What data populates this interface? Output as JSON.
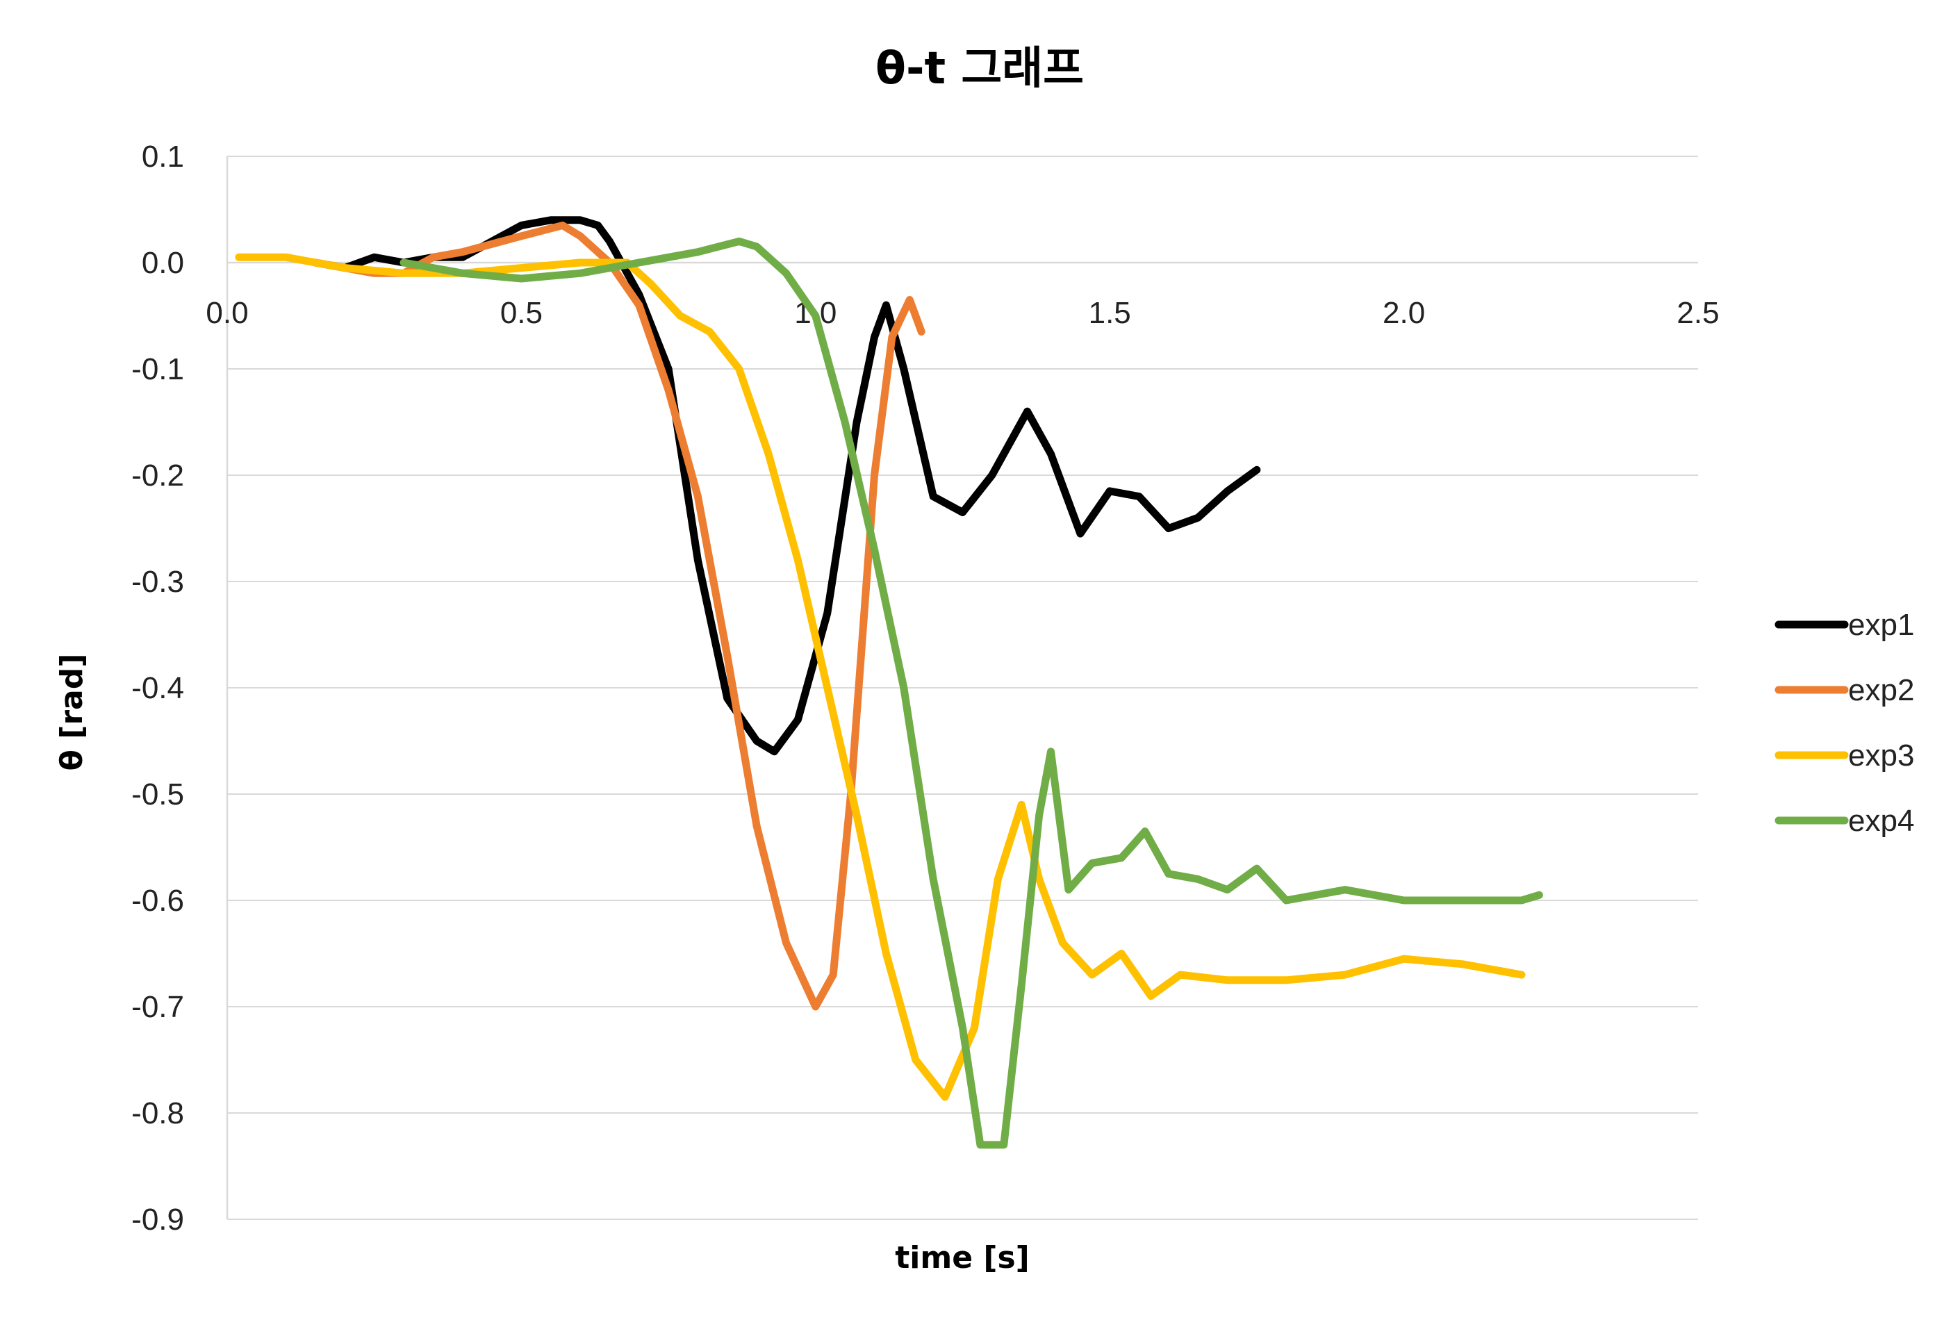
{
  "chart_data": {
    "type": "line",
    "title": "θ-t 그래프",
    "xlabel": "time [s]",
    "ylabel": "θ [rad]",
    "xlim": [
      0,
      2.5
    ],
    "ylim": [
      -0.9,
      0.1
    ],
    "x_ticks": [
      "0.0",
      "0.5",
      "1.0",
      "1.5",
      "2.0",
      "2.5"
    ],
    "y_ticks": [
      "0.1",
      "0.0",
      "-0.1",
      "-0.2",
      "-0.3",
      "-0.4",
      "-0.5",
      "-0.6",
      "-0.7",
      "-0.8",
      "-0.9"
    ],
    "grid": true,
    "legend": "right",
    "series": [
      {
        "name": "exp1",
        "color": "#000000",
        "points": [
          [
            0.15,
            0.0
          ],
          [
            0.2,
            -0.005
          ],
          [
            0.25,
            0.005
          ],
          [
            0.3,
            0.0
          ],
          [
            0.35,
            0.005
          ],
          [
            0.4,
            0.005
          ],
          [
            0.45,
            0.02
          ],
          [
            0.5,
            0.035
          ],
          [
            0.55,
            0.04
          ],
          [
            0.6,
            0.04
          ],
          [
            0.63,
            0.035
          ],
          [
            0.65,
            0.02
          ],
          [
            0.7,
            -0.03
          ],
          [
            0.75,
            -0.1
          ],
          [
            0.8,
            -0.28
          ],
          [
            0.85,
            -0.41
          ],
          [
            0.9,
            -0.45
          ],
          [
            0.93,
            -0.46
          ],
          [
            0.97,
            -0.43
          ],
          [
            1.02,
            -0.33
          ],
          [
            1.07,
            -0.15
          ],
          [
            1.1,
            -0.07
          ],
          [
            1.12,
            -0.04
          ],
          [
            1.15,
            -0.1
          ],
          [
            1.2,
            -0.22
          ],
          [
            1.25,
            -0.235
          ],
          [
            1.3,
            -0.2
          ],
          [
            1.36,
            -0.14
          ],
          [
            1.4,
            -0.18
          ],
          [
            1.45,
            -0.255
          ],
          [
            1.5,
            -0.215
          ],
          [
            1.55,
            -0.22
          ],
          [
            1.6,
            -0.25
          ],
          [
            1.65,
            -0.24
          ],
          [
            1.7,
            -0.215
          ],
          [
            1.75,
            -0.195
          ]
        ]
      },
      {
        "name": "exp2",
        "color": "#ED7D31",
        "points": [
          [
            0.15,
            0.0
          ],
          [
            0.25,
            -0.01
          ],
          [
            0.3,
            -0.01
          ],
          [
            0.35,
            0.005
          ],
          [
            0.4,
            0.01
          ],
          [
            0.5,
            0.025
          ],
          [
            0.57,
            0.035
          ],
          [
            0.6,
            0.025
          ],
          [
            0.65,
            0.0
          ],
          [
            0.7,
            -0.04
          ],
          [
            0.75,
            -0.12
          ],
          [
            0.8,
            -0.22
          ],
          [
            0.85,
            -0.37
          ],
          [
            0.9,
            -0.53
          ],
          [
            0.95,
            -0.64
          ],
          [
            1.0,
            -0.7
          ],
          [
            1.03,
            -0.67
          ],
          [
            1.06,
            -0.5
          ],
          [
            1.1,
            -0.2
          ],
          [
            1.13,
            -0.07
          ],
          [
            1.16,
            -0.035
          ],
          [
            1.18,
            -0.065
          ]
        ]
      },
      {
        "name": "exp3",
        "color": "#FFC000",
        "points": [
          [
            0.02,
            0.005
          ],
          [
            0.1,
            0.005
          ],
          [
            0.2,
            -0.005
          ],
          [
            0.3,
            -0.01
          ],
          [
            0.4,
            -0.01
          ],
          [
            0.5,
            -0.005
          ],
          [
            0.6,
            0.0
          ],
          [
            0.68,
            0.0
          ],
          [
            0.72,
            -0.02
          ],
          [
            0.77,
            -0.05
          ],
          [
            0.82,
            -0.065
          ],
          [
            0.87,
            -0.1
          ],
          [
            0.92,
            -0.18
          ],
          [
            0.97,
            -0.28
          ],
          [
            1.02,
            -0.4
          ],
          [
            1.07,
            -0.52
          ],
          [
            1.12,
            -0.65
          ],
          [
            1.17,
            -0.75
          ],
          [
            1.22,
            -0.785
          ],
          [
            1.27,
            -0.72
          ],
          [
            1.31,
            -0.58
          ],
          [
            1.35,
            -0.51
          ],
          [
            1.38,
            -0.58
          ],
          [
            1.42,
            -0.64
          ],
          [
            1.47,
            -0.67
          ],
          [
            1.52,
            -0.65
          ],
          [
            1.57,
            -0.69
          ],
          [
            1.62,
            -0.67
          ],
          [
            1.7,
            -0.675
          ],
          [
            1.8,
            -0.675
          ],
          [
            1.9,
            -0.67
          ],
          [
            2.0,
            -0.655
          ],
          [
            2.1,
            -0.66
          ],
          [
            2.2,
            -0.67
          ]
        ]
      },
      {
        "name": "exp4",
        "color": "#70AD47",
        "points": [
          [
            0.3,
            0.0
          ],
          [
            0.4,
            -0.01
          ],
          [
            0.5,
            -0.015
          ],
          [
            0.6,
            -0.01
          ],
          [
            0.7,
            0.0
          ],
          [
            0.8,
            0.01
          ],
          [
            0.87,
            0.02
          ],
          [
            0.9,
            0.015
          ],
          [
            0.95,
            -0.01
          ],
          [
            1.0,
            -0.05
          ],
          [
            1.05,
            -0.15
          ],
          [
            1.1,
            -0.27
          ],
          [
            1.15,
            -0.4
          ],
          [
            1.2,
            -0.58
          ],
          [
            1.25,
            -0.72
          ],
          [
            1.28,
            -0.83
          ],
          [
            1.32,
            -0.83
          ],
          [
            1.35,
            -0.68
          ],
          [
            1.38,
            -0.52
          ],
          [
            1.4,
            -0.46
          ],
          [
            1.43,
            -0.59
          ],
          [
            1.47,
            -0.565
          ],
          [
            1.52,
            -0.56
          ],
          [
            1.56,
            -0.535
          ],
          [
            1.6,
            -0.575
          ],
          [
            1.65,
            -0.58
          ],
          [
            1.7,
            -0.59
          ],
          [
            1.75,
            -0.57
          ],
          [
            1.8,
            -0.6
          ],
          [
            1.9,
            -0.59
          ],
          [
            2.0,
            -0.6
          ],
          [
            2.1,
            -0.6
          ],
          [
            2.2,
            -0.6
          ],
          [
            2.23,
            -0.595
          ]
        ]
      }
    ]
  }
}
